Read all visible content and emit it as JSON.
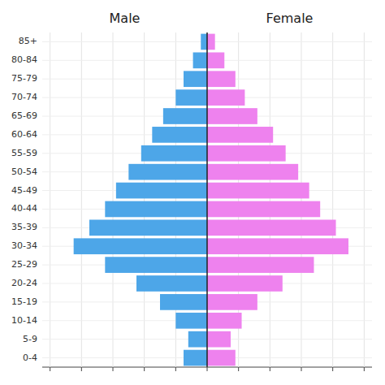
{
  "chart_data": {
    "type": "bar",
    "orientation": "horizontal",
    "categories": [
      "0-4",
      "5-9",
      "10-14",
      "15-19",
      "20-24",
      "25-29",
      "30-34",
      "35-39",
      "40-44",
      "45-49",
      "50-54",
      "55-59",
      "60-64",
      "65-69",
      "70-74",
      "75-79",
      "80-84",
      "85+"
    ],
    "series": [
      {
        "name": "Male",
        "color": "#4da6e8",
        "values": [
          -1.5,
          -1.2,
          -2.0,
          -3.0,
          -4.5,
          -6.5,
          -8.5,
          -7.5,
          -6.5,
          -5.8,
          -5.0,
          -4.2,
          -3.5,
          -2.8,
          -2.0,
          -1.5,
          -0.9,
          -0.4
        ]
      },
      {
        "name": "Female",
        "color": "#ee82ee",
        "values": [
          1.8,
          1.5,
          2.2,
          3.2,
          4.8,
          6.8,
          9.0,
          8.2,
          7.2,
          6.5,
          5.8,
          5.0,
          4.2,
          3.2,
          2.4,
          1.8,
          1.1,
          0.5
        ]
      }
    ],
    "xlim": [
      -10.5,
      10.5
    ],
    "xticks": [
      -10,
      -8,
      -6,
      -4,
      -2,
      0,
      2,
      4,
      6,
      8,
      10
    ],
    "grid": true,
    "tick_labels": "y"
  }
}
